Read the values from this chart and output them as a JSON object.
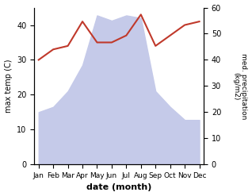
{
  "months": [
    "Jan",
    "Feb",
    "Mar",
    "Apr",
    "May",
    "Jun",
    "Jul",
    "Aug",
    "Sep",
    "Oct",
    "Nov",
    "Dec"
  ],
  "rainfall_precip": [
    20,
    22,
    28,
    38,
    57,
    55,
    57,
    56,
    28,
    22,
    17,
    17
  ],
  "temperature": [
    30,
    33,
    34,
    41,
    35,
    35,
    37,
    43,
    34,
    37,
    40,
    41
  ],
  "temp_ylim": [
    0,
    45
  ],
  "precip_ylim": [
    0,
    60
  ],
  "temp_color": "#c0392b",
  "precip_fill_color": "#c5cae9",
  "xlabel": "date (month)",
  "ylabel_left": "max temp (C)",
  "ylabel_right": "med. precipitation\n(kg/m2)",
  "bg_color": "#ffffff",
  "temp_yticks": [
    0,
    10,
    20,
    30,
    40
  ],
  "precip_yticks": [
    0,
    10,
    20,
    30,
    40,
    50,
    60
  ]
}
